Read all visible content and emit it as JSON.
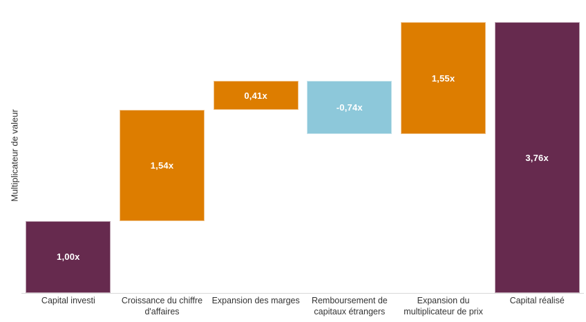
{
  "chart_data": {
    "type": "bar",
    "variant": "waterfall",
    "title": "",
    "xlabel": "",
    "ylabel": "Multiplicateur de valeur",
    "ylim": [
      0,
      4.07
    ],
    "grid": false,
    "legend": "none",
    "value_suffix": "x",
    "categories": [
      "Capital investi",
      "Croissance du chiffre d'affaires",
      "Expansion des marges",
      "Remboursement de capitaux étrangers",
      "Expansion du multiplicateur de prix",
      "Capital réalisé"
    ],
    "items": [
      {
        "label": "Capital investi",
        "value": 1.0,
        "display": "1,00x",
        "role": "base",
        "from": 0,
        "to": 1.0
      },
      {
        "label": "Croissance du chiffre d'affaires",
        "value": 1.54,
        "display": "1,54x",
        "role": "increase",
        "from": 1.0,
        "to": 2.54
      },
      {
        "label": "Expansion des marges",
        "value": 0.41,
        "display": "0,41x",
        "role": "increase",
        "from": 2.54,
        "to": 2.95
      },
      {
        "label": "Remboursement de capitaux étrangers",
        "value": -0.74,
        "display": "-0,74x",
        "role": "decrease",
        "from": 2.21,
        "to": 2.95
      },
      {
        "label": "Expansion du multiplicateur de prix",
        "value": 1.55,
        "display": "1,55x",
        "role": "increase",
        "from": 2.21,
        "to": 3.76
      },
      {
        "label": "Capital réalisé",
        "value": 3.76,
        "display": "3,76x",
        "role": "total",
        "from": 0,
        "to": 3.76
      }
    ]
  },
  "colors": {
    "base": "#662a4e",
    "increase": "#dd7d00",
    "decrease": "#8dc8da",
    "total": "#662a4e",
    "axis_line": "#d8d8d8",
    "axis_text": "#333333",
    "value_text": "#ffffff",
    "background": "#ffffff"
  }
}
